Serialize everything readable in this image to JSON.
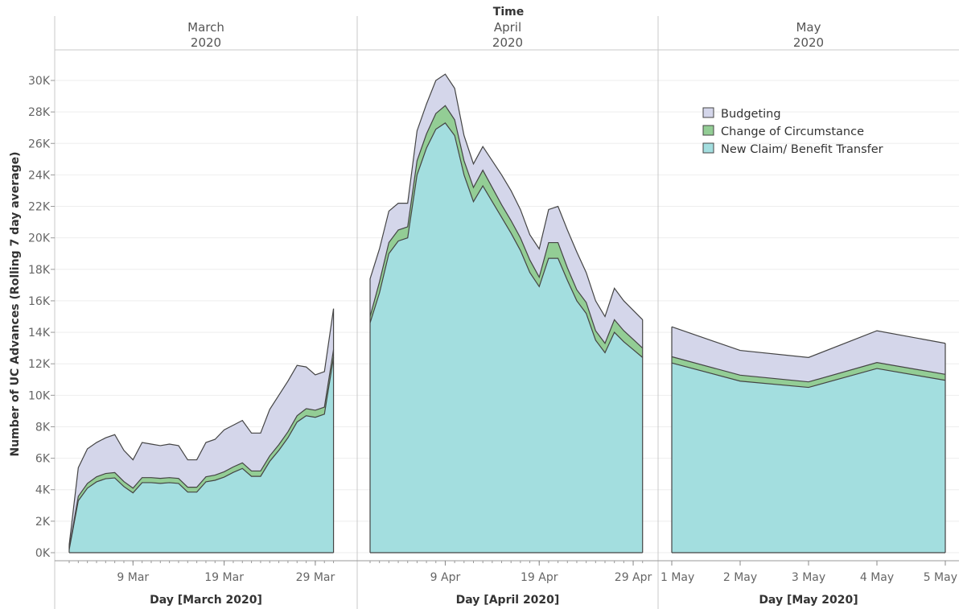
{
  "chart_data": {
    "type": "area",
    "stacked": true,
    "title": "",
    "column_header_title": "Time",
    "ylabel": "Number of UC Advances (Rolling 7 day average)",
    "ylim": [
      0,
      31000
    ],
    "y_ticks": [
      0,
      2000,
      4000,
      6000,
      8000,
      10000,
      12000,
      14000,
      16000,
      18000,
      20000,
      22000,
      24000,
      26000,
      28000,
      30000
    ],
    "y_tick_labels": [
      "0K",
      "2K",
      "4K",
      "6K",
      "8K",
      "10K",
      "12K",
      "14K",
      "16K",
      "18K",
      "20K",
      "22K",
      "24K",
      "26K",
      "28K",
      "30K"
    ],
    "grid": "horizontal",
    "legend_position": "top-right",
    "series_names": [
      "Budgeting",
      "Change of Circumstance",
      "New Claim/ Benefit Transfer"
    ],
    "colors": {
      "Budgeting": "#d4d6ea",
      "Change of Circumstance": "#93cd95",
      "New Claim/ Benefit Transfer": "#a3dedf",
      "outline": "#444444"
    },
    "panels": [
      {
        "month_label": "March",
        "year_label": "2020",
        "xlabel": "Day [March 2020]",
        "x_tick_days": [
          9,
          19,
          29
        ],
        "x_tick_labels": [
          "9 Mar",
          "19 Mar",
          "29 Mar"
        ],
        "days": [
          2,
          3,
          4,
          5,
          6,
          7,
          8,
          9,
          10,
          11,
          12,
          13,
          14,
          15,
          16,
          17,
          18,
          19,
          20,
          21,
          22,
          23,
          24,
          25,
          26,
          27,
          28,
          29,
          30,
          31
        ],
        "series": [
          {
            "name": "New Claim/ Benefit Transfer",
            "values": [
              200,
              3300,
              4100,
              4500,
              4700,
              4750,
              4200,
              3800,
              4450,
              4450,
              4400,
              4450,
              4400,
              3850,
              3850,
              4500,
              4600,
              4800,
              5100,
              5350,
              4850,
              4850,
              5800,
              6500,
              7300,
              8300,
              8700,
              8600,
              8800,
              12400
            ]
          },
          {
            "name": "Change of Circumstance",
            "values": [
              100,
              280,
              300,
              320,
              330,
              340,
              320,
              300,
              320,
              320,
              320,
              320,
              320,
              310,
              310,
              320,
              330,
              340,
              350,
              360,
              340,
              340,
              350,
              360,
              380,
              400,
              450,
              450,
              450,
              500
            ]
          },
          {
            "name": "Budgeting",
            "values": [
              200,
              1820,
              2200,
              2180,
              2270,
              2410,
              1980,
              1800,
              2230,
              2130,
              2080,
              2130,
              2080,
              1740,
              1740,
              2180,
              2270,
              2660,
              2650,
              2690,
              2410,
              2410,
              2950,
              3140,
              3220,
              3200,
              2650,
              2250,
              2250,
              2600
            ]
          }
        ]
      },
      {
        "month_label": "April",
        "year_label": "2020",
        "xlabel": "Day [April 2020]",
        "x_tick_days": [
          9,
          19,
          29
        ],
        "x_tick_labels": [
          "9 Apr",
          "19 Apr",
          "29 Apr"
        ],
        "days": [
          1,
          2,
          3,
          4,
          5,
          6,
          7,
          8,
          9,
          10,
          11,
          12,
          13,
          14,
          15,
          16,
          17,
          18,
          19,
          20,
          21,
          22,
          23,
          24,
          25,
          26,
          27,
          28,
          29,
          30
        ],
        "series": [
          {
            "name": "New Claim/ Benefit Transfer",
            "values": [
              14600,
              16500,
              19000,
              19800,
              20000,
              24000,
              25700,
              26900,
              27300,
              26500,
              24000,
              22300,
              23300,
              22300,
              21300,
              20300,
              19200,
              17800,
              16900,
              18700,
              18700,
              17300,
              16000,
              15200,
              13500,
              12700,
              14000,
              13400,
              12900,
              12400
            ]
          },
          {
            "name": "Change of Circumstance",
            "values": [
              400,
              700,
              700,
              700,
              700,
              900,
              900,
              1000,
              1100,
              1000,
              900,
              900,
              1000,
              900,
              800,
              800,
              800,
              800,
              600,
              1000,
              1000,
              800,
              700,
              700,
              600,
              600,
              800,
              700,
              650,
              600
            ]
          },
          {
            "name": "Budgeting",
            "values": [
              2400,
              2100,
              2000,
              1700,
              1500,
              1900,
              1900,
              2100,
              2000,
              2000,
              1600,
              1500,
              1500,
              1700,
              1900,
              1900,
              1800,
              1600,
              1800,
              2100,
              2300,
              2400,
              2400,
              1900,
              1900,
              1700,
              2000,
              1900,
              1850,
              1800
            ]
          }
        ]
      },
      {
        "month_label": "May",
        "year_label": "2020",
        "xlabel": "Day [May 2020]",
        "x_tick_days": [
          1,
          2,
          3,
          4,
          5
        ],
        "x_tick_labels": [
          "1 May",
          "2 May",
          "3 May",
          "4 May",
          "5 May"
        ],
        "days": [
          1,
          2,
          3,
          4,
          5
        ],
        "series": [
          {
            "name": "New Claim/ Benefit Transfer",
            "values": [
              12050,
              10900,
              10500,
              11700,
              10950
            ]
          },
          {
            "name": "Change of Circumstance",
            "values": [
              400,
              380,
              350,
              380,
              380
            ]
          },
          {
            "name": "Budgeting",
            "values": [
              1900,
              1570,
              1550,
              2020,
              1970
            ]
          }
        ]
      }
    ]
  }
}
